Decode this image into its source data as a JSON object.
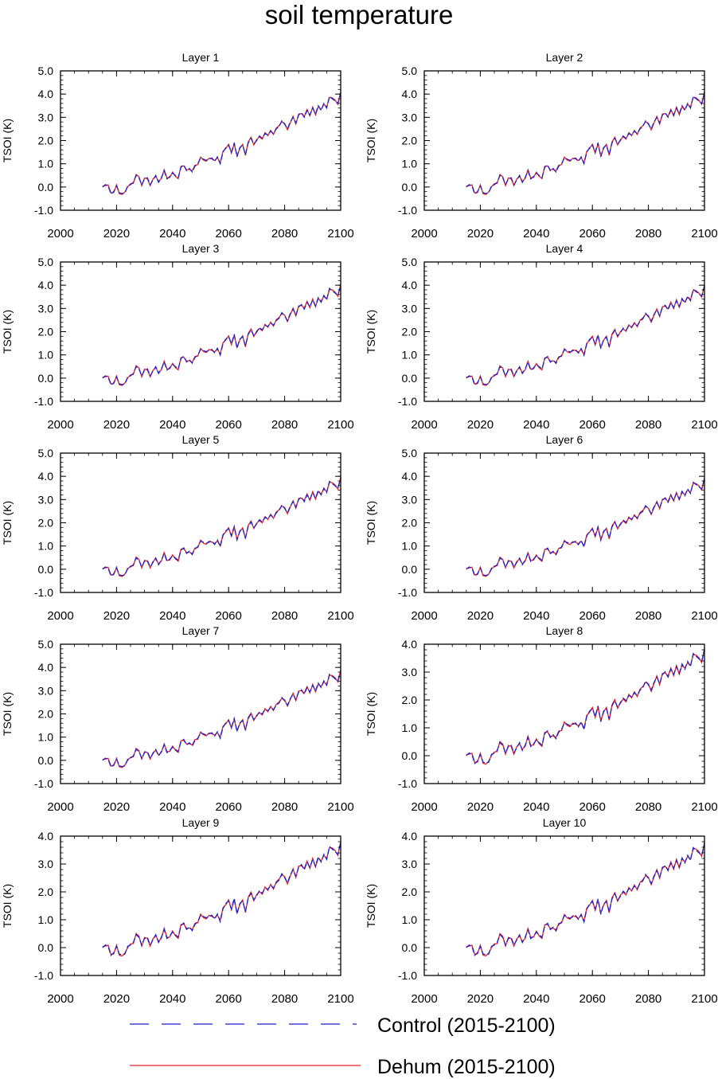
{
  "figure": {
    "title": "soil temperature",
    "colors": {
      "control": "#1f1fd0",
      "dehum": "#e8202a",
      "axis": "#000000"
    }
  },
  "legend": {
    "entries": [
      {
        "label": "Control (2015-2100)",
        "style": "dashed",
        "color": "#1f1fd0"
      },
      {
        "label": "Dehum (2015-2100)",
        "style": "solid",
        "color": "#e8202a"
      }
    ]
  },
  "chart_data": [
    {
      "type": "line",
      "title": "Layer 1",
      "ylabel": "TSOI  (K)",
      "xlim": [
        2000,
        2100
      ],
      "ylim": [
        -1.0,
        5.0
      ],
      "xticks": [
        "2000",
        "2020",
        "2040",
        "2060",
        "2080",
        "2100"
      ],
      "yticks": [
        "-1.0",
        "0.0",
        "1.0",
        "2.0",
        "3.0",
        "4.0",
        "5.0"
      ],
      "ytick_values": [
        -1,
        0,
        1,
        2,
        3,
        4,
        5
      ],
      "x_start": 2015,
      "x_end": 2100,
      "series_names": [
        "Control (2015-2100)",
        "Dehum (2015-2100)"
      ],
      "scale": 1.0,
      "dehum_offset": 0.04
    },
    {
      "type": "line",
      "title": "Layer 2",
      "ylabel": "TSOI  (K)",
      "xlim": [
        2000,
        2100
      ],
      "ylim": [
        -1.0,
        5.0
      ],
      "xticks": [
        "2000",
        "2020",
        "2040",
        "2060",
        "2080",
        "2100"
      ],
      "yticks": [
        "-1.0",
        "0.0",
        "1.0",
        "2.0",
        "3.0",
        "4.0",
        "5.0"
      ],
      "ytick_values": [
        -1,
        0,
        1,
        2,
        3,
        4,
        5
      ],
      "x_start": 2015,
      "x_end": 2100,
      "series_names": [
        "Control (2015-2100)",
        "Dehum (2015-2100)"
      ],
      "scale": 1.0,
      "dehum_offset": 0.04
    },
    {
      "type": "line",
      "title": "Layer 3",
      "ylabel": "TSOI  (K)",
      "xlim": [
        2000,
        2100
      ],
      "ylim": [
        -1.0,
        5.0
      ],
      "xticks": [
        "2000",
        "2020",
        "2040",
        "2060",
        "2080",
        "2100"
      ],
      "yticks": [
        "-1.0",
        "0.0",
        "1.0",
        "2.0",
        "3.0",
        "4.0",
        "5.0"
      ],
      "ytick_values": [
        -1,
        0,
        1,
        2,
        3,
        4,
        5
      ],
      "x_start": 2015,
      "x_end": 2100,
      "series_names": [
        "Control (2015-2100)",
        "Dehum (2015-2100)"
      ],
      "scale": 0.99,
      "dehum_offset": 0.04
    },
    {
      "type": "line",
      "title": "Layer 4",
      "ylabel": "TSOI  (K)",
      "xlim": [
        2000,
        2100
      ],
      "ylim": [
        -1.0,
        5.0
      ],
      "xticks": [
        "2000",
        "2020",
        "2040",
        "2060",
        "2080",
        "2100"
      ],
      "yticks": [
        "-1.0",
        "0.0",
        "1.0",
        "2.0",
        "3.0",
        "4.0",
        "5.0"
      ],
      "ytick_values": [
        -1,
        0,
        1,
        2,
        3,
        4,
        5
      ],
      "x_start": 2015,
      "x_end": 2100,
      "series_names": [
        "Control (2015-2100)",
        "Dehum (2015-2100)"
      ],
      "scale": 0.98,
      "dehum_offset": 0.04
    },
    {
      "type": "line",
      "title": "Layer 5",
      "ylabel": "TSOI  (K)",
      "xlim": [
        2000,
        2100
      ],
      "ylim": [
        -1.0,
        5.0
      ],
      "xticks": [
        "2000",
        "2020",
        "2040",
        "2060",
        "2080",
        "2100"
      ],
      "yticks": [
        "-1.0",
        "0.0",
        "1.0",
        "2.0",
        "3.0",
        "4.0",
        "5.0"
      ],
      "ytick_values": [
        -1,
        0,
        1,
        2,
        3,
        4,
        5
      ],
      "x_start": 2015,
      "x_end": 2100,
      "series_names": [
        "Control (2015-2100)",
        "Dehum (2015-2100)"
      ],
      "scale": 0.97,
      "dehum_offset": 0.04
    },
    {
      "type": "line",
      "title": "Layer 6",
      "ylabel": "TSOI  (K)",
      "xlim": [
        2000,
        2100
      ],
      "ylim": [
        -1.0,
        5.0
      ],
      "xticks": [
        "2000",
        "2020",
        "2040",
        "2060",
        "2080",
        "2100"
      ],
      "yticks": [
        "-1.0",
        "0.0",
        "1.0",
        "2.0",
        "3.0",
        "4.0",
        "5.0"
      ],
      "ytick_values": [
        -1,
        0,
        1,
        2,
        3,
        4,
        5
      ],
      "x_start": 2015,
      "x_end": 2100,
      "series_names": [
        "Control (2015-2100)",
        "Dehum (2015-2100)"
      ],
      "scale": 0.96,
      "dehum_offset": 0.04
    },
    {
      "type": "line",
      "title": "Layer 7",
      "ylabel": "TSOI  (K)",
      "xlim": [
        2000,
        2100
      ],
      "ylim": [
        -1.0,
        5.0
      ],
      "xticks": [
        "2000",
        "2020",
        "2040",
        "2060",
        "2080",
        "2100"
      ],
      "yticks": [
        "-1.0",
        "0.0",
        "1.0",
        "2.0",
        "3.0",
        "4.0",
        "5.0"
      ],
      "ytick_values": [
        -1,
        0,
        1,
        2,
        3,
        4,
        5
      ],
      "x_start": 2015,
      "x_end": 2100,
      "series_names": [
        "Control (2015-2100)",
        "Dehum (2015-2100)"
      ],
      "scale": 0.95,
      "dehum_offset": 0.04
    },
    {
      "type": "line",
      "title": "Layer 8",
      "ylabel": "TSOI  (K)",
      "xlim": [
        2000,
        2100
      ],
      "ylim": [
        -1.0,
        4.0
      ],
      "xticks": [
        "2000",
        "2020",
        "2040",
        "2060",
        "2080",
        "2100"
      ],
      "yticks": [
        "-1.0",
        "0.0",
        "1.0",
        "2.0",
        "3.0",
        "4.0"
      ],
      "ytick_values": [
        -1,
        0,
        1,
        2,
        3,
        4
      ],
      "x_start": 2015,
      "x_end": 2100,
      "series_names": [
        "Control (2015-2100)",
        "Dehum (2015-2100)"
      ],
      "scale": 0.94,
      "dehum_offset": 0.04
    },
    {
      "type": "line",
      "title": "Layer 9",
      "ylabel": "TSOI  (K)",
      "xlim": [
        2000,
        2100
      ],
      "ylim": [
        -1.0,
        4.0
      ],
      "xticks": [
        "2000",
        "2020",
        "2040",
        "2060",
        "2080",
        "2100"
      ],
      "yticks": [
        "-1.0",
        "0.0",
        "1.0",
        "2.0",
        "3.0",
        "4.0"
      ],
      "ytick_values": [
        -1,
        0,
        1,
        2,
        3,
        4
      ],
      "x_start": 2015,
      "x_end": 2100,
      "series_names": [
        "Control (2015-2100)",
        "Dehum (2015-2100)"
      ],
      "scale": 0.93,
      "dehum_offset": 0.04
    },
    {
      "type": "line",
      "title": "Layer 10",
      "ylabel": "TSOI  (K)",
      "xlim": [
        2000,
        2100
      ],
      "ylim": [
        -1.0,
        4.0
      ],
      "xticks": [
        "2000",
        "2020",
        "2040",
        "2060",
        "2080",
        "2100"
      ],
      "yticks": [
        "-1.0",
        "0.0",
        "1.0",
        "2.0",
        "3.0",
        "4.0"
      ],
      "ytick_values": [
        -1,
        0,
        1,
        2,
        3,
        4
      ],
      "x_start": 2015,
      "x_end": 2100,
      "series_names": [
        "Control (2015-2100)",
        "Dehum (2015-2100)"
      ],
      "scale": 0.92,
      "dehum_offset": 0.04
    }
  ],
  "base_series": [
    0.0,
    0.1,
    0.05,
    -0.3,
    -0.2,
    0.05,
    -0.25,
    -0.28,
    -0.25,
    0.05,
    0.1,
    0.2,
    0.5,
    0.4,
    0.1,
    0.35,
    0.4,
    0.1,
    0.3,
    0.5,
    0.2,
    0.4,
    0.7,
    0.35,
    0.45,
    0.6,
    0.5,
    0.4,
    0.85,
    0.95,
    0.7,
    0.8,
    0.65,
    0.9,
    1.0,
    1.25,
    1.2,
    1.15,
    1.2,
    1.25,
    1.1,
    1.3,
    1.0,
    1.5,
    1.7,
    1.8,
    1.5,
    1.9,
    1.3,
    1.7,
    1.8,
    1.4,
    1.9,
    2.1,
    1.85,
    2.0,
    2.2,
    2.1,
    2.3,
    2.25,
    2.4,
    2.3,
    2.5,
    2.6,
    2.85,
    2.7,
    2.5,
    2.8,
    3.0,
    2.75,
    3.1,
    3.2,
    3.0,
    3.3,
    3.1,
    3.4,
    3.15,
    3.5,
    3.3,
    3.6,
    3.4,
    3.9,
    3.8,
    3.7,
    3.6,
    4.05
  ]
}
